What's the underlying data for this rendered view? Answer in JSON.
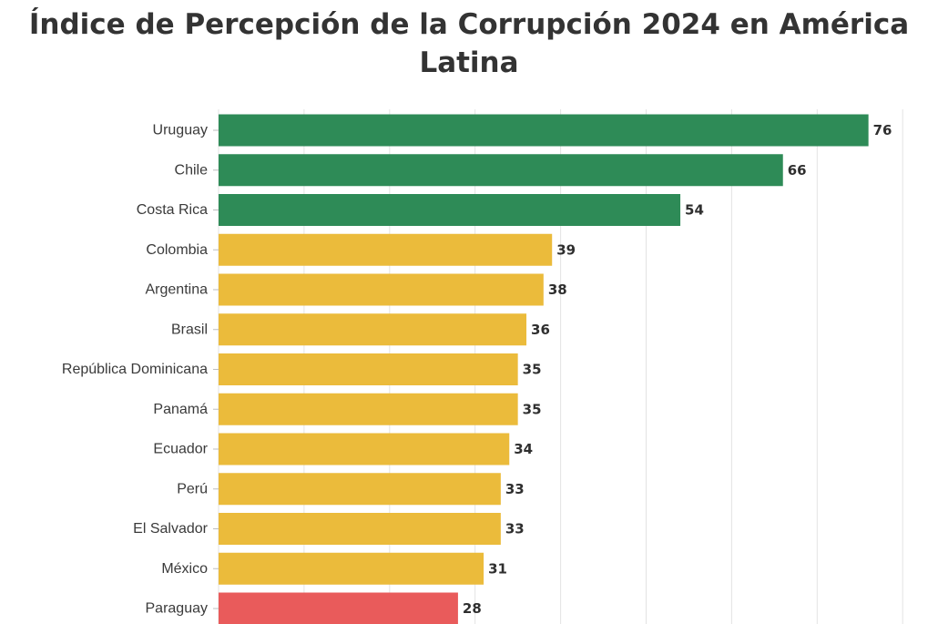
{
  "title": "Índice de Percepción de la Corrupción 2024 en América Latina",
  "colors": {
    "high": "#2e8b57",
    "medium": "#ebbb3b",
    "low": "#e95b5b"
  },
  "chart_data": {
    "type": "bar",
    "orientation": "horizontal",
    "title": "Índice de Percepción de la Corrupción 2024 en América Latina",
    "xlabel": "",
    "ylabel": "",
    "xlim": [
      0,
      80
    ],
    "grid": true,
    "legend": "none",
    "categories": [
      "Uruguay",
      "Chile",
      "Costa Rica",
      "Colombia",
      "Argentina",
      "Brasil",
      "República Dominicana",
      "Panamá",
      "Ecuador",
      "Perú",
      "El Salvador",
      "México",
      "Paraguay"
    ],
    "values": [
      76,
      66,
      54,
      39,
      38,
      36,
      35,
      35,
      34,
      33,
      33,
      31,
      28
    ],
    "bar_colors": [
      "#2e8b57",
      "#2e8b57",
      "#2e8b57",
      "#ebbb3b",
      "#ebbb3b",
      "#ebbb3b",
      "#ebbb3b",
      "#ebbb3b",
      "#ebbb3b",
      "#ebbb3b",
      "#ebbb3b",
      "#ebbb3b",
      "#e95b5b"
    ]
  }
}
